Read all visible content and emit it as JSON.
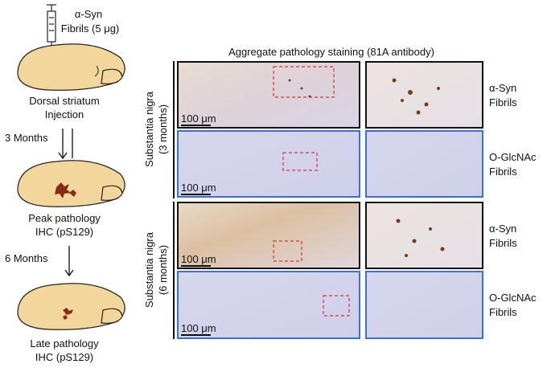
{
  "workflow": {
    "agent": [
      "α-Syn",
      "Fibrils (5 μg)"
    ],
    "stages": [
      [
        "Dorsal striatum",
        "Injection"
      ],
      [
        "Peak pathology",
        "IHC (pS129)"
      ],
      [
        "Late pathology",
        "IHC (pS129)"
      ]
    ],
    "intervals": [
      "3 Months",
      "6 Months"
    ]
  },
  "staining": {
    "title": "Aggregate pathology staining (81A antibody)",
    "groups": [
      {
        "label": [
          "Substantia nigra",
          "(3 months)"
        ],
        "rows": [
          {
            "label": [
              "α-Syn",
              "Fibrils"
            ],
            "scale_bar": "100 μm"
          },
          {
            "label": [
              "O-GlcNAc",
              "Fibrils"
            ],
            "scale_bar": "100 μm"
          }
        ]
      },
      {
        "label": [
          "Substantia nigra",
          "(6 months)"
        ],
        "rows": [
          {
            "label": [
              "α-Syn",
              "Fibrils"
            ],
            "scale_bar": "100 μm"
          },
          {
            "label": [
              "O-GlcNAc",
              "Fibrils"
            ],
            "scale_bar": "100 μm"
          }
        ]
      }
    ]
  }
}
